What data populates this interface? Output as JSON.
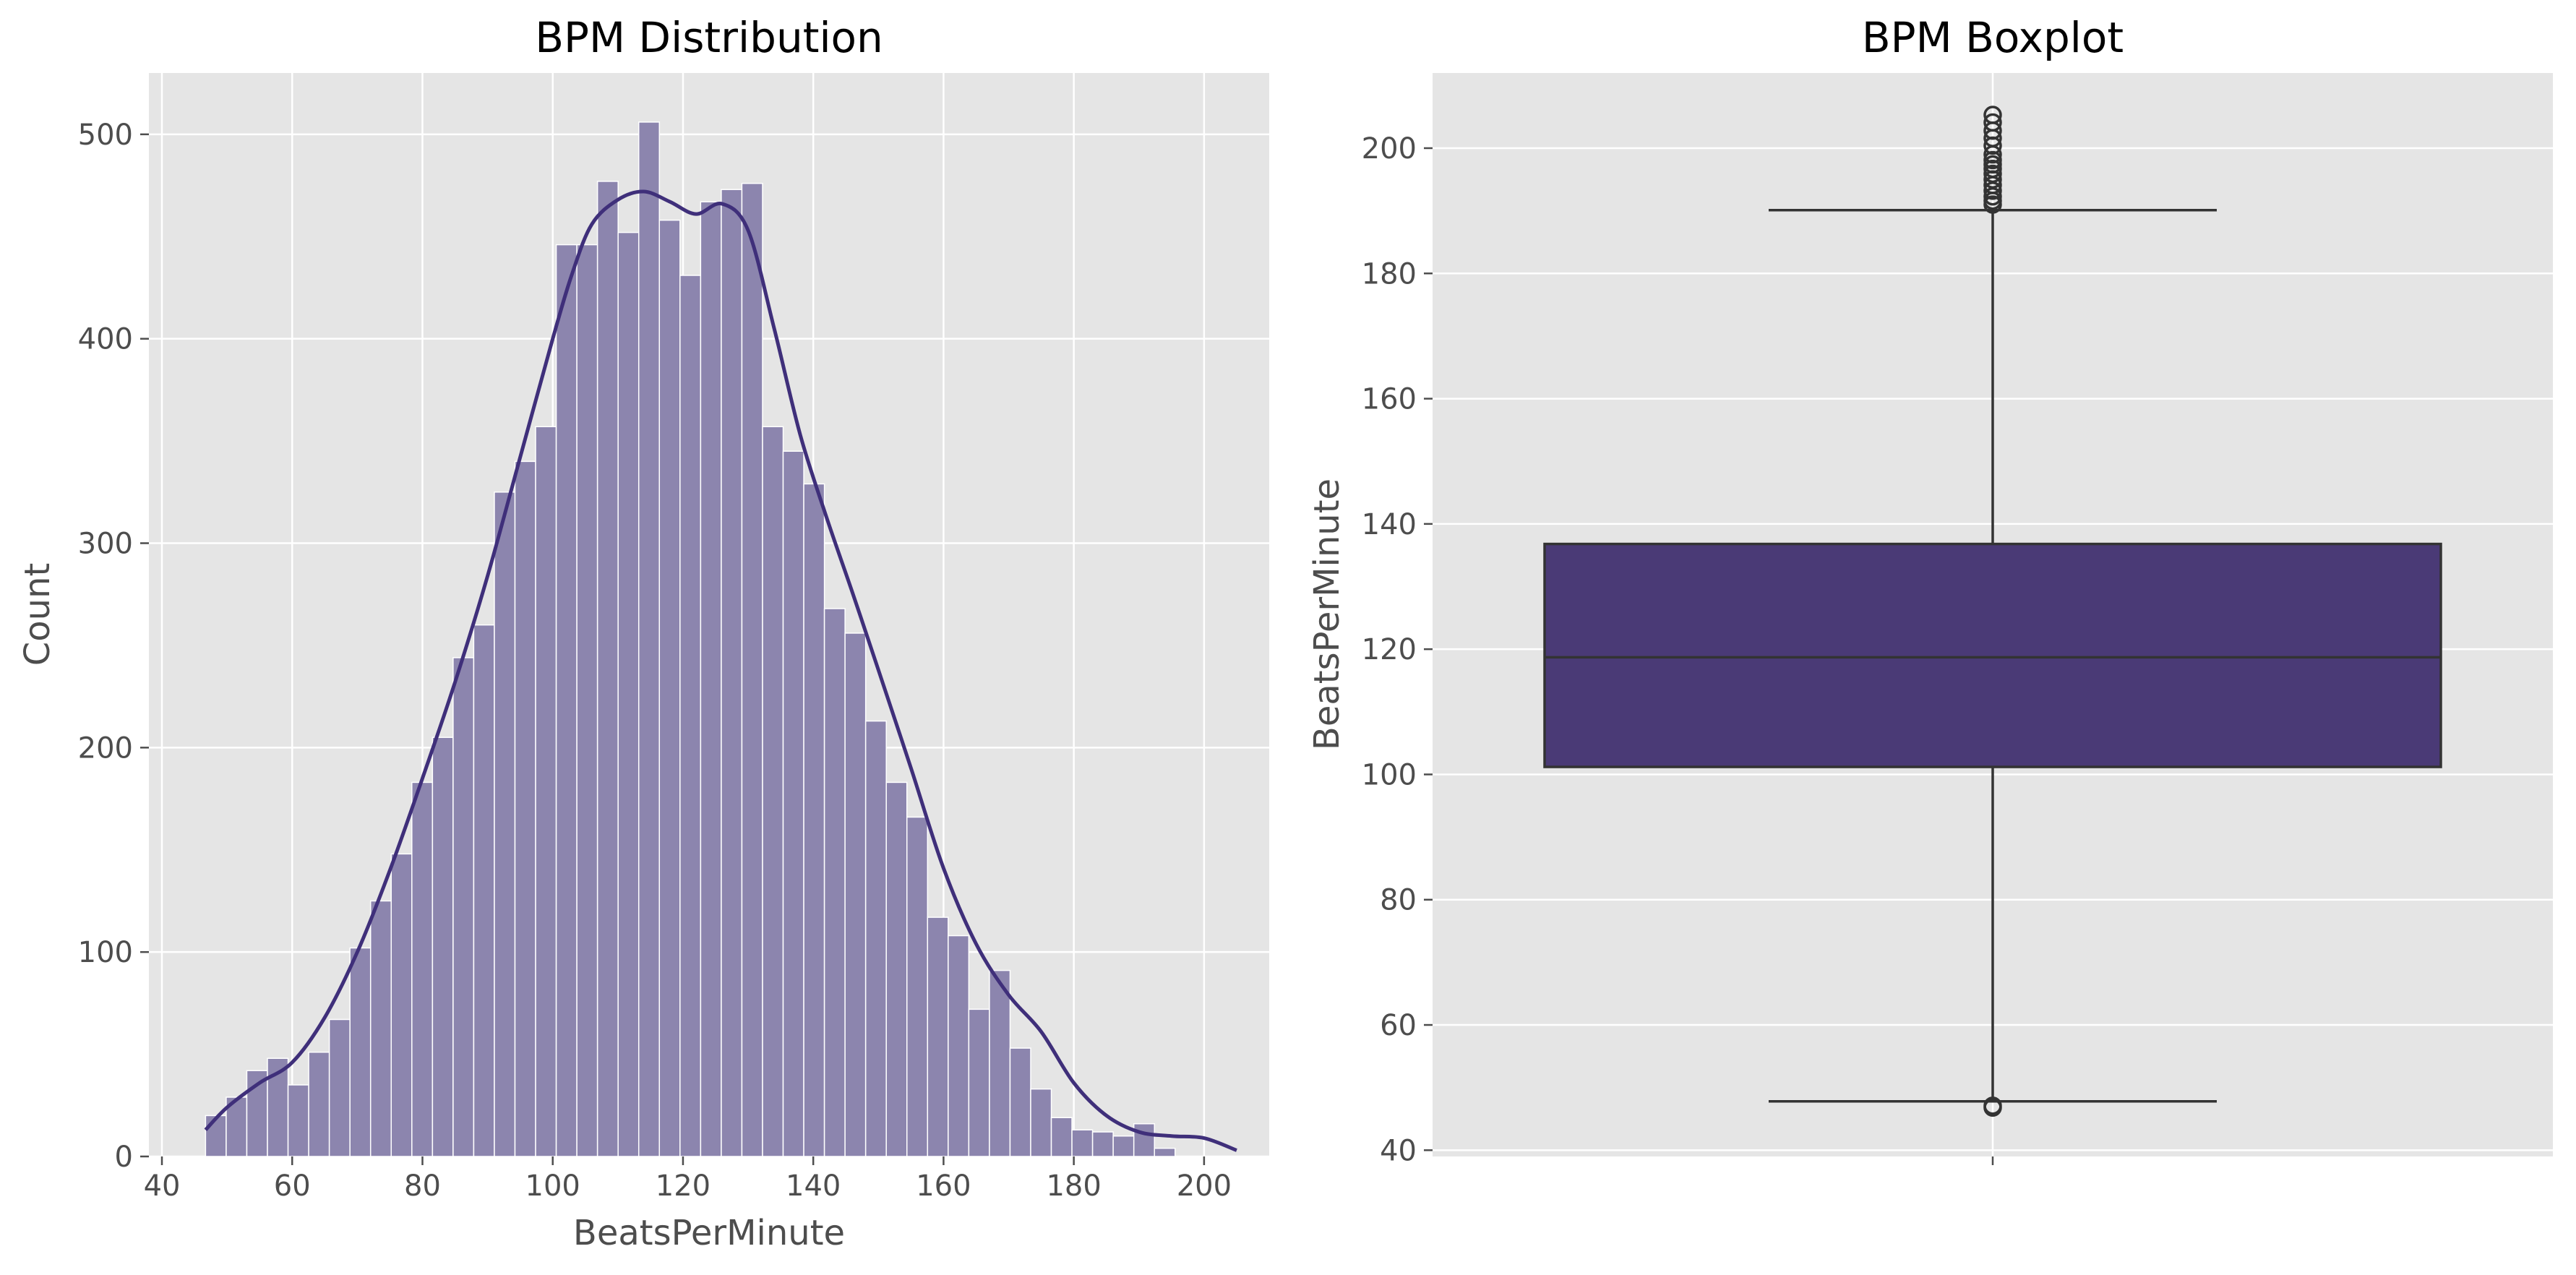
{
  "chart_data": [
    {
      "type": "bar",
      "subtype": "histogram-with-kde",
      "title": "BPM Distribution",
      "xlabel": "BeatsPerMinute",
      "ylabel": "Count",
      "xlim": [
        38,
        210
      ],
      "ylim": [
        0,
        530
      ],
      "xticks": [
        40,
        60,
        80,
        100,
        120,
        140,
        160,
        180,
        200
      ],
      "yticks": [
        0,
        100,
        200,
        300,
        400,
        500
      ],
      "grid": true,
      "bar_color": "#8c85ae",
      "line_color": "#3f2f7a",
      "background": "#e5e5e5",
      "bin_start": 46.7,
      "bin_width": 3.167,
      "values": [
        20,
        29,
        42,
        48,
        35,
        51,
        67,
        102,
        125,
        148,
        183,
        205,
        244,
        260,
        325,
        340,
        357,
        446,
        446,
        477,
        452,
        506,
        458,
        431,
        467,
        473,
        476,
        357,
        345,
        329,
        268,
        256,
        213,
        183,
        166,
        117,
        108,
        72,
        91,
        53,
        33,
        19,
        13,
        12,
        10,
        16,
        4
      ],
      "kde": {
        "x": [
          46.7,
          50,
          55,
          60,
          65,
          70,
          75,
          80,
          85,
          90,
          95,
          100,
          103,
          106,
          110,
          114,
          118,
          122,
          126,
          130,
          134,
          138,
          142,
          146,
          150,
          155,
          160,
          165,
          170,
          175,
          180,
          185,
          190,
          195,
          200,
          205
        ],
        "y": [
          13,
          24,
          36,
          46,
          68,
          100,
          140,
          185,
          232,
          284,
          342,
          400,
          432,
          456,
          468,
          472,
          467,
          461,
          466,
          453,
          405,
          353,
          313,
          276,
          238,
          190,
          141,
          104,
          79,
          61,
          36,
          20,
          12,
          10,
          9,
          3
        ]
      }
    },
    {
      "type": "boxplot",
      "title": "BPM Boxplot",
      "xlabel": "",
      "ylabel": "BeatsPerMinute",
      "ylim": [
        39,
        212
      ],
      "yticks": [
        40,
        60,
        80,
        100,
        120,
        140,
        160,
        180,
        200
      ],
      "grid": true,
      "box_color": "#4a3a76",
      "line_color": "#333333",
      "background": "#e5e5e5",
      "whisker_low": 47.8,
      "q1": 101.2,
      "median": 118.7,
      "q3": 136.8,
      "whisker_high": 190.1,
      "outliers": [
        191.0,
        191.6,
        192.3,
        193.2,
        194.1,
        195.0,
        195.9,
        196.7,
        197.4,
        198.1,
        199.0,
        200.4,
        201.6,
        202.8,
        204.1,
        205.3,
        46.8,
        47.1
      ]
    }
  ]
}
